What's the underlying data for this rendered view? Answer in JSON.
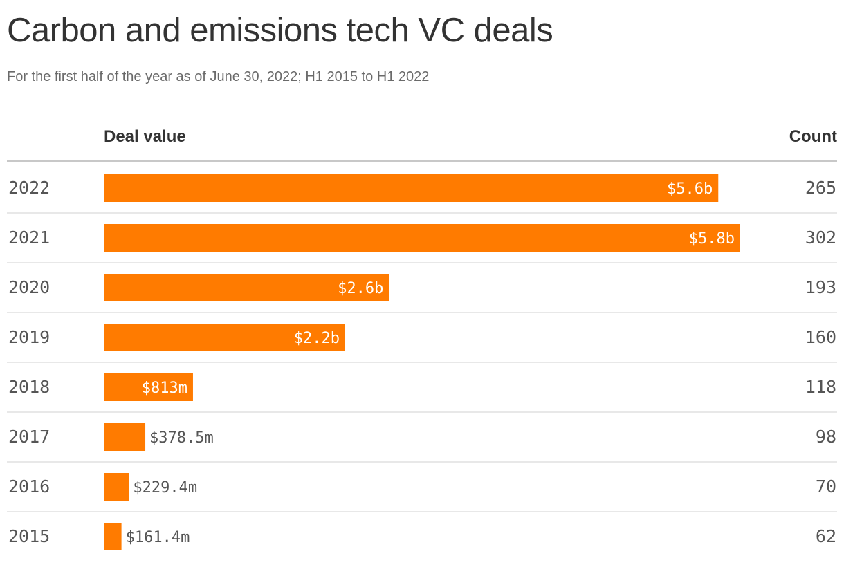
{
  "title": "Carbon and emissions tech VC deals",
  "subtitle": "For the first half of the year as of June 30, 2022; H1 2015 to H1 2022",
  "columns": {
    "deal_value": "Deal value",
    "count": "Count"
  },
  "colors": {
    "bar": "#ff7b00",
    "text_dark": "#333333",
    "text_muted": "#555555",
    "label_inside": "#ffffff",
    "divider": "#e0e0e0"
  },
  "chart_data": {
    "type": "bar",
    "orientation": "horizontal",
    "categories": [
      "2022",
      "2021",
      "2020",
      "2019",
      "2018",
      "2017",
      "2016",
      "2015"
    ],
    "values": [
      5600,
      5800,
      2600,
      2200,
      813,
      378.5,
      229.4,
      161.4
    ],
    "unit": "$ millions",
    "value_labels": [
      "$5.6b",
      "$5.8b",
      "$2.6b",
      "$2.2b",
      "$813m",
      "$378.5m",
      "$229.4m",
      "$161.4m"
    ],
    "counts": [
      265,
      302,
      193,
      160,
      118,
      98,
      70,
      62
    ],
    "xlim": [
      0,
      5800
    ],
    "grid": false,
    "legend": "none"
  }
}
